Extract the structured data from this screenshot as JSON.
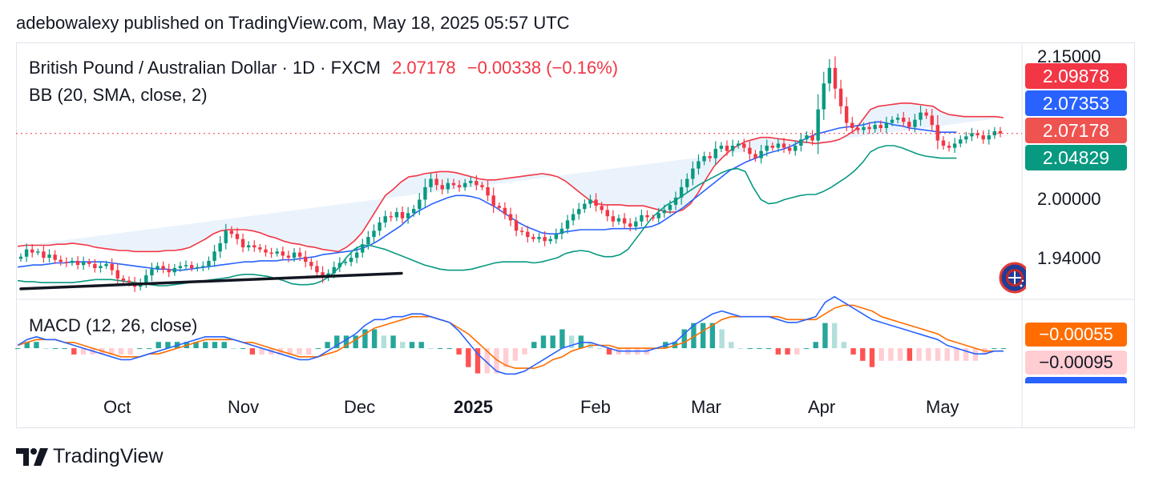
{
  "header": {
    "publisher_line": "adebowalexy published on TradingView.com, May 18, 2025 05:57 UTC"
  },
  "legend": {
    "symbol": "British Pound / Australian Dollar · 1D · FXCM",
    "last": "2.07178",
    "change": "−0.00338 (−0.16%)",
    "indicator": "BB (20, SMA, close, 2)",
    "macd": "MACD (12, 26, close)"
  },
  "price_axis": {
    "ticks": [
      "2.15000",
      "2.00000",
      "1.94000"
    ],
    "tags": [
      {
        "label": "2.09878",
        "color": "#f23645"
      },
      {
        "label": "2.07353",
        "color": "#2962ff"
      },
      {
        "label": "2.07178",
        "color": "#ef5350"
      },
      {
        "label": "2.04829",
        "color": "#089981"
      }
    ]
  },
  "macd_axis": {
    "tags": [
      {
        "label": "−0.00055",
        "color": "#ff6d00",
        "text_color": "#ffffff"
      },
      {
        "label": "−0.00095",
        "color": "#ffcdd2",
        "text_color": "#131722"
      }
    ]
  },
  "time_axis": [
    "Oct",
    "Nov",
    "Dec",
    "2025",
    "Feb",
    "Mar",
    "Apr",
    "May"
  ],
  "colors": {
    "up": "#089981",
    "down": "#f23645",
    "bb_upper": "#f23645",
    "bb_basis": "#2962ff",
    "bb_lower": "#089981",
    "bb_fill": "#eaf3fc",
    "macd_line": "#2962ff",
    "signal_line": "#ff6d00",
    "trendline": "#131722"
  },
  "footer": {
    "brand": "TradingView",
    "logo_icon": "tradingview-logo-icon"
  },
  "flag_icon": "gbp-aud-flag-icon",
  "chart_data": [
    {
      "type": "candlestick",
      "title": "British Pound / Australian Dollar · 1D · FXCM",
      "ylim": [
        1.915,
        2.158
      ],
      "months": [
        "Oct",
        "Nov",
        "Dec",
        "2025",
        "Feb",
        "Mar",
        "Apr",
        "May"
      ],
      "close": [
        1.953,
        1.96,
        1.957,
        1.958,
        1.952,
        1.955,
        1.95,
        1.948,
        1.947,
        1.949,
        1.945,
        1.948,
        1.946,
        1.942,
        1.944,
        1.946,
        1.94,
        1.932,
        1.93,
        1.928,
        1.924,
        1.928,
        1.935,
        1.941,
        1.944,
        1.941,
        1.938,
        1.942,
        1.944,
        1.945,
        1.942,
        1.943,
        1.944,
        1.949,
        1.958,
        1.966,
        1.978,
        1.975,
        1.97,
        1.962,
        1.964,
        1.962,
        1.96,
        1.957,
        1.956,
        1.958,
        1.954,
        1.952,
        1.957,
        1.953,
        1.948,
        1.944,
        1.938,
        1.933,
        1.937,
        1.943,
        1.947,
        1.948,
        1.952,
        1.957,
        1.965,
        1.972,
        1.978,
        1.986,
        1.992,
        1.991,
        1.996,
        1.99,
        1.995,
        1.999,
        2.008,
        2.02,
        2.028,
        2.022,
        2.018,
        2.024,
        2.022,
        2.02,
        2.024,
        2.026,
        2.022,
        2.02,
        2.012,
        2.002,
        2.0,
        1.994,
        1.988,
        1.978,
        1.977,
        1.972,
        1.97,
        1.972,
        1.968,
        1.97,
        1.975,
        1.98,
        1.988,
        1.994,
        1.999,
        2.004,
        2.008,
        2.002,
        1.998,
        1.992,
        1.987,
        1.99,
        1.985,
        1.982,
        1.987,
        1.993,
        1.991,
        1.99,
        1.995,
        1.998,
        2.003,
        2.01,
        2.02,
        2.028,
        2.038,
        2.045,
        2.05,
        2.048,
        2.057,
        2.06,
        2.055,
        2.06,
        2.062,
        2.058,
        2.052,
        2.048,
        2.055,
        2.06,
        2.058,
        2.062,
        2.058,
        2.055,
        2.06,
        2.066,
        2.07,
        2.065,
        2.095,
        2.12,
        2.135,
        2.115,
        2.098,
        2.082,
        2.077,
        2.075,
        2.078,
        2.076,
        2.08,
        2.077,
        2.082,
        2.085,
        2.087,
        2.083,
        2.078,
        2.085,
        2.092,
        2.089,
        2.08,
        2.065,
        2.06,
        2.058,
        2.062,
        2.066,
        2.069,
        2.072,
        2.07,
        2.066,
        2.07,
        2.074,
        2.0718
      ],
      "bb_upper": [
        1.963,
        1.964,
        1.964,
        1.964,
        1.964,
        1.965,
        1.965,
        1.966,
        1.965,
        1.964,
        1.962,
        1.961,
        1.96,
        1.959,
        1.959,
        1.958,
        1.958,
        1.958,
        1.958,
        1.959,
        1.959,
        1.96,
        1.962,
        1.966,
        1.97,
        1.975,
        1.978,
        1.979,
        1.979,
        1.979,
        1.978,
        1.976,
        1.973,
        1.971,
        1.968,
        1.966,
        1.965,
        1.963,
        1.962,
        1.96,
        1.959,
        1.958,
        1.962,
        1.968,
        1.976,
        1.988,
        2.0,
        2.012,
        2.018,
        2.025,
        2.03,
        2.031,
        2.033,
        2.034,
        2.035,
        2.035,
        2.034,
        2.032,
        2.03,
        2.028,
        2.027,
        2.027,
        2.028,
        2.029,
        2.03,
        2.031,
        2.032,
        2.033,
        2.032,
        2.03,
        2.026,
        2.02,
        2.014,
        2.008,
        2.004,
        2.003,
        2.003,
        2.003,
        2.002,
        2.002,
        2.002,
        2.0,
        1.998,
        1.996,
        1.996,
        1.998,
        2.004,
        2.015,
        2.028,
        2.04,
        2.048,
        2.055,
        2.06,
        2.064,
        2.066,
        2.068,
        2.068,
        2.067,
        2.066,
        2.065,
        2.064,
        2.063,
        2.062,
        2.063,
        2.064,
        2.066,
        2.07,
        2.075,
        2.085,
        2.095,
        2.098,
        2.099,
        2.1,
        2.101,
        2.101,
        2.1,
        2.099,
        2.098,
        2.093,
        2.09,
        2.089,
        2.088,
        2.088,
        2.088,
        2.088,
        2.088,
        2.087
      ],
      "bb_basis": [
        1.943,
        1.944,
        1.945,
        1.945,
        1.946,
        1.947,
        1.947,
        1.948,
        1.948,
        1.948,
        1.948,
        1.948,
        1.947,
        1.946,
        1.945,
        1.944,
        1.943,
        1.942,
        1.941,
        1.941,
        1.94,
        1.94,
        1.941,
        1.942,
        1.943,
        1.944,
        1.945,
        1.946,
        1.947,
        1.948,
        1.948,
        1.949,
        1.949,
        1.949,
        1.95,
        1.95,
        1.951,
        1.952,
        1.953,
        1.955,
        1.956,
        1.957,
        1.958,
        1.959,
        1.961,
        1.964,
        1.968,
        1.973,
        1.978,
        1.983,
        1.99,
        1.996,
        2.0,
        2.004,
        2.007,
        2.01,
        2.012,
        2.012,
        2.011,
        2.009,
        2.005,
        2.001,
        1.996,
        1.991,
        1.986,
        1.982,
        1.979,
        1.976,
        1.975,
        1.975,
        1.977,
        1.978,
        1.979,
        1.979,
        1.979,
        1.979,
        1.98,
        1.98,
        1.98,
        1.98,
        1.981,
        1.982,
        1.985,
        1.99,
        1.995,
        2.0,
        2.006,
        2.012,
        2.018,
        2.024,
        2.03,
        2.036,
        2.04,
        2.044,
        2.047,
        2.05,
        2.053,
        2.055,
        2.057,
        2.06,
        2.064,
        2.068,
        2.071,
        2.073,
        2.075,
        2.077,
        2.078,
        2.079,
        2.08,
        2.082,
        2.083,
        2.082,
        2.08,
        2.079,
        2.077,
        2.076,
        2.075,
        2.074,
        2.073,
        2.073,
        2.073
      ],
      "bb_lower": [
        1.93,
        1.929,
        1.929,
        1.928,
        1.928,
        1.928,
        1.928,
        1.928,
        1.929,
        1.93,
        1.931,
        1.931,
        1.931,
        1.93,
        1.929,
        1.928,
        1.927,
        1.926,
        1.925,
        1.925,
        1.926,
        1.927,
        1.928,
        1.929,
        1.93,
        1.931,
        1.932,
        1.933,
        1.935,
        1.936,
        1.936,
        1.935,
        1.934,
        1.932,
        1.93,
        1.927,
        1.926,
        1.926,
        1.927,
        1.93,
        1.935,
        1.942,
        1.952,
        1.96,
        1.964,
        1.964,
        1.962,
        1.96,
        1.957,
        1.954,
        1.951,
        1.948,
        1.945,
        1.943,
        1.941,
        1.94,
        1.94,
        1.94,
        1.941,
        1.943,
        1.945,
        1.947,
        1.948,
        1.948,
        1.948,
        1.948,
        1.947,
        1.948,
        1.95,
        1.952,
        1.956,
        1.958,
        1.959,
        1.958,
        1.955,
        1.953,
        1.953,
        1.955,
        1.96,
        1.97,
        1.98,
        1.99,
        1.997,
        2.003,
        2.007,
        2.012,
        2.017,
        2.022,
        2.026,
        2.03,
        2.034,
        2.037,
        2.038,
        2.035,
        2.02,
        2.008,
        2.004,
        2.005,
        2.008,
        2.01,
        2.012,
        2.013,
        2.013,
        2.016,
        2.02,
        2.025,
        2.03,
        2.036,
        2.044,
        2.054,
        2.058,
        2.06,
        2.06,
        2.058,
        2.055,
        2.052,
        2.05,
        2.049,
        2.048,
        2.048,
        2.048
      ],
      "trendline": [
        [
          0,
          1.922
        ],
        [
          66,
          1.937
        ]
      ]
    },
    {
      "type": "macd",
      "title": "MACD (12, 26, close)",
      "ylim": [
        -0.012,
        0.014
      ],
      "macd": [
        0.001,
        0.003,
        0.004,
        0.003,
        0.003,
        0.002,
        0.001,
        0.0,
        -0.001,
        -0.002,
        -0.003,
        -0.004,
        -0.004,
        -0.003,
        -0.002,
        -0.001,
        0.0,
        0.001,
        0.002,
        0.003,
        0.004,
        0.004,
        0.004,
        0.003,
        0.002,
        0.001,
        0.0,
        -0.001,
        -0.002,
        -0.003,
        -0.004,
        -0.004,
        -0.003,
        -0.001,
        0.001,
        0.003,
        0.005,
        0.008,
        0.01,
        0.01,
        0.011,
        0.011,
        0.012,
        0.012,
        0.011,
        0.01,
        0.009,
        0.006,
        0.002,
        -0.002,
        -0.005,
        -0.008,
        -0.009,
        -0.009,
        -0.008,
        -0.006,
        -0.004,
        -0.002,
        0.0,
        0.001,
        0.002,
        0.002,
        0.001,
        0.0,
        -0.001,
        -0.001,
        -0.001,
        -0.001,
        0.0,
        0.001,
        0.002,
        0.005,
        0.008,
        0.01,
        0.012,
        0.013,
        0.012,
        0.011,
        0.011,
        0.011,
        0.011,
        0.01,
        0.009,
        0.009,
        0.01,
        0.011,
        0.016,
        0.018,
        0.016,
        0.014,
        0.012,
        0.01,
        0.009,
        0.008,
        0.007,
        0.006,
        0.005,
        0.004,
        0.003,
        0.001,
        0.0,
        -0.001,
        -0.002,
        -0.002,
        -0.001,
        -0.001
      ],
      "signal": [
        0.001,
        0.002,
        0.003,
        0.003,
        0.003,
        0.002,
        0.002,
        0.001,
        0.0,
        -0.001,
        -0.002,
        -0.003,
        -0.003,
        -0.003,
        -0.002,
        -0.002,
        -0.001,
        0.0,
        0.001,
        0.002,
        0.003,
        0.003,
        0.003,
        0.003,
        0.002,
        0.002,
        0.001,
        0.0,
        -0.001,
        -0.002,
        -0.003,
        -0.003,
        -0.003,
        -0.002,
        -0.001,
        0.001,
        0.003,
        0.005,
        0.007,
        0.008,
        0.009,
        0.01,
        0.011,
        0.011,
        0.011,
        0.01,
        0.009,
        0.007,
        0.005,
        0.002,
        -0.001,
        -0.004,
        -0.006,
        -0.007,
        -0.007,
        -0.007,
        -0.006,
        -0.004,
        -0.003,
        -0.001,
        0.0,
        0.001,
        0.001,
        0.001,
        0.0,
        0.0,
        0.0,
        0.0,
        0.0,
        0.0,
        0.001,
        0.002,
        0.004,
        0.006,
        0.008,
        0.01,
        0.011,
        0.011,
        0.011,
        0.011,
        0.011,
        0.011,
        0.01,
        0.01,
        0.01,
        0.01,
        0.012,
        0.014,
        0.015,
        0.015,
        0.014,
        0.013,
        0.011,
        0.01,
        0.009,
        0.008,
        0.007,
        0.006,
        0.005,
        0.003,
        0.002,
        0.001,
        0.0,
        -0.001,
        -0.001,
        -0.001
      ]
    }
  ]
}
